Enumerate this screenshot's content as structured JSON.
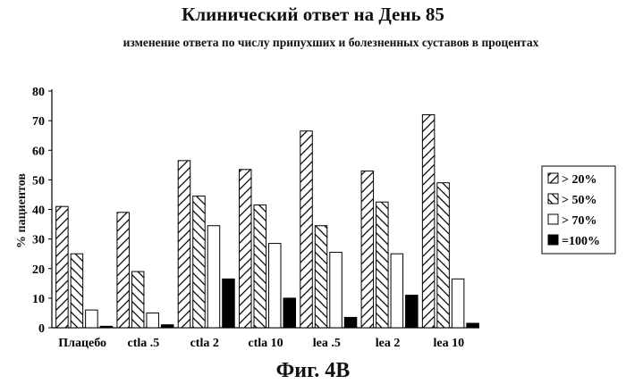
{
  "title": "Клинический ответ на День 85",
  "subtitle": "изменение ответа по числу припухших и болезненных суставов в процентах",
  "caption": "Фиг. 4B",
  "chart_data": {
    "type": "bar",
    "title": "Клинический ответ на День 85",
    "subtitle": "изменение ответа по числу припухших и болезненных суставов в процентах",
    "xlabel": "",
    "ylabel": "% пациентов",
    "ylim": [
      0,
      80
    ],
    "yticks": [
      0,
      10,
      20,
      30,
      40,
      50,
      60,
      70,
      80
    ],
    "grid": false,
    "legend_position": "right",
    "categories": [
      "Плацебо",
      "ctla .5",
      "ctla 2",
      "ctla 10",
      "lea .5",
      "lea 2",
      "lea 10"
    ],
    "series": [
      {
        "name": "> 20%",
        "pattern": "hatch-forward",
        "values": [
          41,
          39,
          56.5,
          53.5,
          66.5,
          53,
          72
        ]
      },
      {
        "name": "> 50%",
        "pattern": "hatch-back",
        "values": [
          25,
          19,
          44.5,
          41.5,
          34.5,
          42.5,
          49
        ]
      },
      {
        "name": "> 70%",
        "pattern": "white",
        "values": [
          6,
          5,
          34.5,
          28.5,
          25.5,
          25,
          16.5
        ]
      },
      {
        "name": "=100%",
        "pattern": "black",
        "values": [
          0.5,
          1,
          16.5,
          10,
          3.5,
          11,
          1.5
        ]
      }
    ],
    "colors": {
      "stroke": "#000000",
      "fill_white": "#ffffff",
      "fill_black": "#000000"
    }
  }
}
